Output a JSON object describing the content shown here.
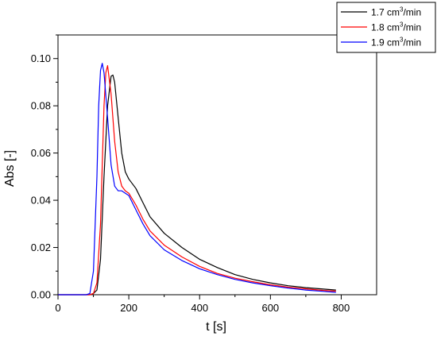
{
  "chart_data": {
    "type": "line",
    "xlabel": "t [s]",
    "ylabel": "Abs [-]",
    "xlim": [
      0,
      900
    ],
    "ylim": [
      0,
      0.11
    ],
    "x_ticks": [
      0,
      200,
      400,
      600,
      800
    ],
    "x_tick_labels": [
      "0",
      "200",
      "400",
      "600",
      "800"
    ],
    "y_ticks": [
      0,
      0.02,
      0.04,
      0.06,
      0.08,
      0.1
    ],
    "y_tick_labels": [
      "0.00",
      "0.02",
      "0.04",
      "0.06",
      "0.08",
      "0.10"
    ],
    "grid": false,
    "legend_position": "top-right, outside plot",
    "series": [
      {
        "name": "1.7 cm³/min",
        "legend_base": "1.7 cm",
        "legend_sup": "3",
        "legend_tail": "/min",
        "color": "#000000",
        "x": [
          0,
          90,
          100,
          110,
          120,
          130,
          140,
          150,
          155,
          160,
          170,
          180,
          190,
          200,
          220,
          240,
          260,
          300,
          350,
          400,
          450,
          500,
          550,
          600,
          650,
          700,
          750,
          785
        ],
        "y": [
          0,
          0,
          0.0005,
          0.002,
          0.015,
          0.05,
          0.08,
          0.0925,
          0.093,
          0.09,
          0.075,
          0.06,
          0.052,
          0.049,
          0.045,
          0.039,
          0.033,
          0.026,
          0.02,
          0.015,
          0.0115,
          0.0085,
          0.0065,
          0.005,
          0.0038,
          0.003,
          0.0024,
          0.002
        ]
      },
      {
        "name": "1.8 cm³/min",
        "legend_base": "1.8 cm",
        "legend_sup": "3",
        "legend_tail": "/min",
        "color": "#ff0000",
        "x": [
          0,
          90,
          100,
          110,
          120,
          130,
          135,
          140,
          150,
          160,
          170,
          180,
          190,
          200,
          220,
          240,
          260,
          300,
          350,
          400,
          450,
          500,
          550,
          600,
          650,
          700,
          750,
          785
        ],
        "y": [
          0,
          0,
          0.0005,
          0.005,
          0.03,
          0.08,
          0.094,
          0.097,
          0.085,
          0.065,
          0.052,
          0.046,
          0.044,
          0.043,
          0.038,
          0.032,
          0.027,
          0.021,
          0.016,
          0.012,
          0.009,
          0.007,
          0.0055,
          0.0042,
          0.0032,
          0.0025,
          0.0018,
          0.0015
        ]
      },
      {
        "name": "1.9 cm³/min",
        "legend_base": "1.9 cm",
        "legend_sup": "3",
        "legend_tail": "/min",
        "color": "#0000ff",
        "x": [
          0,
          80,
          90,
          100,
          110,
          115,
          120,
          125,
          130,
          140,
          150,
          160,
          170,
          180,
          190,
          200,
          220,
          240,
          260,
          300,
          350,
          400,
          450,
          500,
          550,
          600,
          650,
          700,
          750,
          785
        ],
        "y": [
          0,
          0,
          0.0005,
          0.01,
          0.05,
          0.08,
          0.095,
          0.098,
          0.094,
          0.075,
          0.055,
          0.046,
          0.044,
          0.044,
          0.043,
          0.042,
          0.036,
          0.03,
          0.025,
          0.019,
          0.0145,
          0.011,
          0.0085,
          0.0065,
          0.005,
          0.0038,
          0.0028,
          0.002,
          0.0014,
          0.001
        ]
      }
    ]
  }
}
